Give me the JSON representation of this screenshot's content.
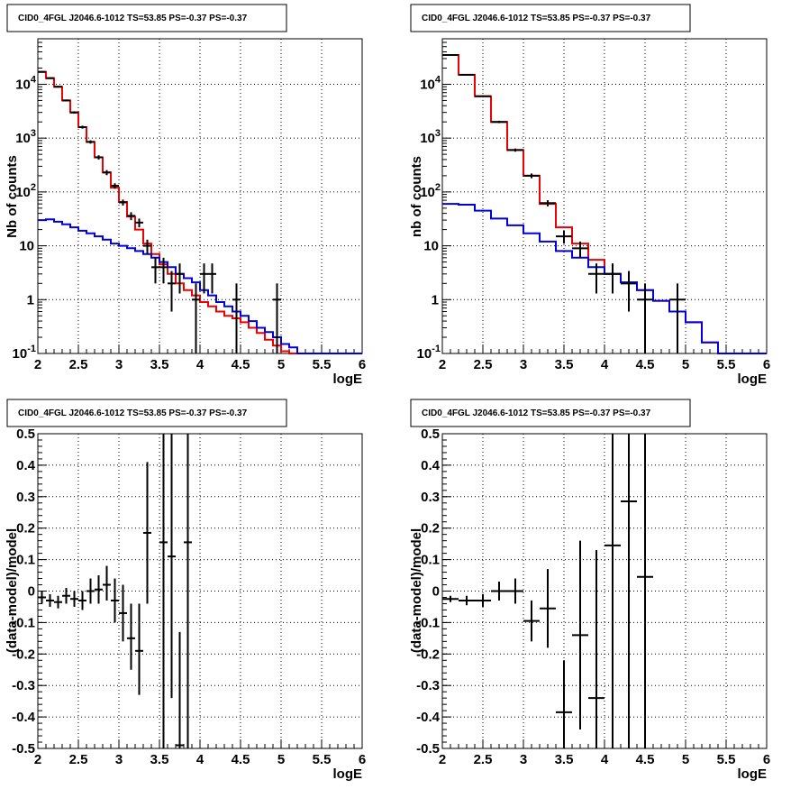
{
  "colors": {
    "data": "#000000",
    "total_model": "#ee0000",
    "component_model": "#0000dd"
  },
  "chart_data": [
    {
      "type": "line",
      "title": "CID0_4FGL J2046.6-1012 TS=53.85 PS=-0.37 PS=-0.37",
      "xlabel": "logE",
      "ylabel": "Nb of counts",
      "xlim": [
        2,
        6
      ],
      "ylim": [
        0.1,
        70000
      ],
      "yscale": "log",
      "grid": true,
      "xticks": [
        "2",
        "2.5",
        "3",
        "3.5",
        "4",
        "4.5",
        "5",
        "5.5",
        "6"
      ],
      "yticks": [
        {
          "v": 0.1,
          "label": "10",
          "exp": "-1"
        },
        {
          "v": 1,
          "label": "1",
          "exp": ""
        },
        {
          "v": 10,
          "label": "10",
          "exp": ""
        },
        {
          "v": 100,
          "label": "10",
          "exp": "2"
        },
        {
          "v": 1000,
          "label": "10",
          "exp": "3"
        },
        {
          "v": 10000,
          "label": "10",
          "exp": "4"
        }
      ],
      "bin_edges": [
        2,
        2.1,
        2.2,
        2.3,
        2.4,
        2.5,
        2.6,
        2.7,
        2.8,
        2.9,
        3,
        3.1,
        3.2,
        3.3,
        3.4,
        3.5,
        3.6,
        3.7,
        3.8,
        3.9,
        4,
        4.1,
        4.2,
        4.3,
        4.4,
        4.5,
        4.6,
        4.7,
        4.8,
        4.9,
        5,
        5.1,
        5.2,
        5.3,
        5.4,
        5.5,
        5.6,
        5.7,
        5.8,
        5.9,
        6
      ],
      "series": [
        {
          "role": "total_model",
          "step": true,
          "values": [
            17000,
            13000,
            9000,
            5000,
            3000,
            1600,
            850,
            440,
            230,
            120,
            65,
            35,
            20,
            11,
            7,
            4.5,
            3,
            2,
            1.5,
            1.2,
            0.9,
            0.75,
            0.6,
            0.5,
            0.45,
            0.38,
            0.3,
            0.24,
            0.18,
            0.14,
            0.11,
            0.1,
            0.1,
            0.1,
            0.1,
            0.1,
            0.1,
            0.1,
            0.1,
            0.1
          ]
        },
        {
          "role": "component_model",
          "step": true,
          "values": [
            30,
            31,
            28,
            25,
            22,
            19,
            17,
            15,
            13,
            11,
            10,
            9,
            8,
            7,
            6,
            5,
            4,
            3,
            2.5,
            2.1,
            1.5,
            1.2,
            0.9,
            0.75,
            0.6,
            0.5,
            0.4,
            0.3,
            0.25,
            0.2,
            0.15,
            0.13,
            0.1,
            0.1,
            0.1,
            0.1,
            0.1,
            0.1,
            0.1,
            0.1
          ]
        }
      ],
      "points": [
        {
          "x": 2.05,
          "y": 17000,
          "lo": 16500,
          "hi": 17500
        },
        {
          "x": 2.15,
          "y": 13000,
          "lo": 12600,
          "hi": 13400
        },
        {
          "x": 2.25,
          "y": 9000,
          "lo": 8700,
          "hi": 9300
        },
        {
          "x": 2.35,
          "y": 5000,
          "lo": 4800,
          "hi": 5200
        },
        {
          "x": 2.45,
          "y": 3000,
          "lo": 2850,
          "hi": 3150
        },
        {
          "x": 2.55,
          "y": 1600,
          "lo": 1500,
          "hi": 1700
        },
        {
          "x": 2.65,
          "y": 850,
          "lo": 790,
          "hi": 910
        },
        {
          "x": 2.75,
          "y": 440,
          "lo": 400,
          "hi": 480
        },
        {
          "x": 2.85,
          "y": 230,
          "lo": 205,
          "hi": 255
        },
        {
          "x": 2.95,
          "y": 130,
          "lo": 115,
          "hi": 145
        },
        {
          "x": 3.05,
          "y": 64,
          "lo": 56,
          "hi": 72
        },
        {
          "x": 3.15,
          "y": 36,
          "lo": 30,
          "hi": 42
        },
        {
          "x": 3.25,
          "y": 27,
          "lo": 22,
          "hi": 32
        },
        {
          "x": 3.35,
          "y": 10,
          "lo": 7,
          "hi": 13
        },
        {
          "x": 3.45,
          "y": 4,
          "lo": 2,
          "hi": 6
        },
        {
          "x": 3.55,
          "y": 4,
          "lo": 2,
          "hi": 6
        },
        {
          "x": 3.65,
          "y": 2,
          "lo": 0.6,
          "hi": 3.4
        },
        {
          "x": 3.75,
          "y": 3,
          "lo": 1.3,
          "hi": 4.7
        },
        {
          "x": 3.95,
          "y": 1,
          "lo": 0.1,
          "hi": 2
        },
        {
          "x": 4.05,
          "y": 3,
          "lo": 1.3,
          "hi": 4.7
        },
        {
          "x": 4.15,
          "y": 3,
          "lo": 1.3,
          "hi": 4.7
        },
        {
          "x": 4.45,
          "y": 1,
          "lo": 0.1,
          "hi": 2
        },
        {
          "x": 4.95,
          "y": 1,
          "lo": 0.1,
          "hi": 2
        }
      ]
    },
    {
      "type": "line",
      "title": "CID0_4FGL J2046.6-1012 TS=53.85 PS=-0.37 PS=-0.37",
      "xlabel": "logE",
      "ylabel": "nb of counts",
      "xlim": [
        2,
        6
      ],
      "ylim": [
        0.1,
        70000
      ],
      "yscale": "log",
      "grid": true,
      "xticks": [
        "2",
        "2.5",
        "3",
        "3.5",
        "4",
        "4.5",
        "5",
        "5.5",
        "6"
      ],
      "yticks": [
        {
          "v": 0.1,
          "label": "10",
          "exp": "-1"
        },
        {
          "v": 1,
          "label": "1",
          "exp": ""
        },
        {
          "v": 10,
          "label": "10",
          "exp": ""
        },
        {
          "v": 100,
          "label": "10",
          "exp": "2"
        },
        {
          "v": 1000,
          "label": "10",
          "exp": "3"
        },
        {
          "v": 10000,
          "label": "10",
          "exp": "4"
        }
      ],
      "bin_edges": [
        2,
        2.2,
        2.4,
        2.6,
        2.8,
        3,
        3.2,
        3.4,
        3.6,
        3.8,
        4,
        4.2,
        4.4,
        4.6,
        4.8,
        5,
        5.2,
        5.4,
        5.6,
        5.8,
        6
      ],
      "series": [
        {
          "role": "total_model",
          "step": true,
          "values": [
            35000,
            15000,
            6000,
            2000,
            600,
            200,
            60,
            22,
            11,
            5.5,
            3,
            2.1,
            1.5,
            0.95,
            0.6,
            0.38,
            0.16,
            0.1,
            0.1,
            0.1
          ]
        },
        {
          "role": "component_model",
          "step": true,
          "values": [
            60,
            58,
            45,
            32,
            24,
            17,
            12,
            8,
            6,
            4,
            3,
            2.1,
            1.5,
            0.95,
            0.6,
            0.38,
            0.16,
            0.1,
            0.1,
            0.1
          ]
        }
      ],
      "points": [
        {
          "x": 2.1,
          "y": 35000,
          "lo": 34000,
          "hi": 36000
        },
        {
          "x": 2.3,
          "y": 15000,
          "lo": 14500,
          "hi": 15500
        },
        {
          "x": 2.5,
          "y": 6000,
          "lo": 5800,
          "hi": 6200
        },
        {
          "x": 2.7,
          "y": 2000,
          "lo": 1900,
          "hi": 2100
        },
        {
          "x": 2.9,
          "y": 600,
          "lo": 560,
          "hi": 640
        },
        {
          "x": 3.1,
          "y": 200,
          "lo": 180,
          "hi": 220
        },
        {
          "x": 3.3,
          "y": 62,
          "lo": 54,
          "hi": 70
        },
        {
          "x": 3.5,
          "y": 15,
          "lo": 11,
          "hi": 19
        },
        {
          "x": 3.7,
          "y": 9,
          "lo": 6,
          "hi": 12
        },
        {
          "x": 3.9,
          "y": 3,
          "lo": 1.3,
          "hi": 4.7
        },
        {
          "x": 4.1,
          "y": 3,
          "lo": 1.3,
          "hi": 4.7
        },
        {
          "x": 4.3,
          "y": 2,
          "lo": 0.6,
          "hi": 3.4
        },
        {
          "x": 4.5,
          "y": 1,
          "lo": 0.1,
          "hi": 2
        },
        {
          "x": 4.9,
          "y": 1,
          "lo": 0.1,
          "hi": 2
        }
      ]
    },
    {
      "type": "scatter",
      "title": "CID0_4FGL J2046.6-1012 TS=53.85 PS=-0.37 PS=-0.37",
      "xlabel": "logE",
      "ylabel": "(data-model)/model",
      "xlim": [
        2,
        6
      ],
      "ylim": [
        -0.5,
        0.5
      ],
      "yscale": "linear",
      "grid": true,
      "xticks": [
        "2",
        "2.5",
        "3",
        "3.5",
        "4",
        "4.5",
        "5",
        "5.5",
        "6"
      ],
      "yticks": [
        "-0.5",
        "-0.4",
        "-0.3",
        "-0.2",
        "-0.1",
        "0",
        "0.1",
        "0.2",
        "0.3",
        "0.4",
        "0.5"
      ],
      "points": [
        {
          "x": 2.05,
          "y": -0.02,
          "lo": -0.04,
          "hi": 0.0
        },
        {
          "x": 2.15,
          "y": -0.03,
          "lo": -0.05,
          "hi": -0.01
        },
        {
          "x": 2.25,
          "y": -0.035,
          "lo": -0.055,
          "hi": -0.015
        },
        {
          "x": 2.35,
          "y": -0.015,
          "lo": -0.04,
          "hi": 0.01
        },
        {
          "x": 2.45,
          "y": -0.025,
          "lo": -0.05,
          "hi": 0.0
        },
        {
          "x": 2.55,
          "y": -0.03,
          "lo": -0.06,
          "hi": 0.0
        },
        {
          "x": 2.65,
          "y": 0.0,
          "lo": -0.04,
          "hi": 0.04
        },
        {
          "x": 2.75,
          "y": 0.005,
          "lo": -0.04,
          "hi": 0.05
        },
        {
          "x": 2.85,
          "y": 0.02,
          "lo": -0.03,
          "hi": 0.08
        },
        {
          "x": 2.95,
          "y": -0.03,
          "lo": -0.1,
          "hi": 0.04
        },
        {
          "x": 3.05,
          "y": -0.07,
          "lo": -0.16,
          "hi": 0.02
        },
        {
          "x": 3.15,
          "y": -0.15,
          "lo": -0.25,
          "hi": -0.04
        },
        {
          "x": 3.25,
          "y": -0.19,
          "lo": -0.33,
          "hi": -0.04
        },
        {
          "x": 3.35,
          "y": 0.185,
          "lo": -0.04,
          "hi": 0.41
        },
        {
          "x": 3.55,
          "y": 0.155,
          "lo": -0.5,
          "hi": 0.5
        },
        {
          "x": 3.65,
          "y": 0.11,
          "lo": -0.34,
          "hi": 0.5
        },
        {
          "x": 3.75,
          "y": -0.49,
          "lo": -0.5,
          "hi": -0.13
        },
        {
          "x": 3.85,
          "y": 0.155,
          "lo": -0.5,
          "hi": 0.5
        }
      ]
    },
    {
      "type": "scatter",
      "title": "CID0_4FGL J2046.6-1012 TS=53.85 PS=-0.37 PS=-0.37",
      "xlabel": "logE",
      "ylabel": "(data-model)/model",
      "xlim": [
        2,
        6
      ],
      "ylim": [
        -0.5,
        0.5
      ],
      "yscale": "linear",
      "grid": true,
      "xticks": [
        "2",
        "2.5",
        "3",
        "3.5",
        "4",
        "4.5",
        "5",
        "5.5",
        "6"
      ],
      "yticks": [
        "-0.5",
        "-0.4",
        "-0.3",
        "-0.2",
        "-0.1",
        "0",
        "0.1",
        "0.2",
        "0.3",
        "0.4",
        "0.5"
      ],
      "points": [
        {
          "x": 2.1,
          "y": -0.025,
          "lo": -0.035,
          "hi": -0.015
        },
        {
          "x": 2.3,
          "y": -0.03,
          "lo": -0.045,
          "hi": -0.015
        },
        {
          "x": 2.5,
          "y": -0.03,
          "lo": -0.05,
          "hi": -0.01
        },
        {
          "x": 2.7,
          "y": 0.0,
          "lo": -0.03,
          "hi": 0.03
        },
        {
          "x": 2.9,
          "y": 0.0,
          "lo": -0.04,
          "hi": 0.04
        },
        {
          "x": 3.1,
          "y": -0.095,
          "lo": -0.16,
          "hi": -0.03
        },
        {
          "x": 3.3,
          "y": -0.055,
          "lo": -0.18,
          "hi": 0.07
        },
        {
          "x": 3.5,
          "y": -0.385,
          "lo": -0.5,
          "hi": -0.22
        },
        {
          "x": 3.7,
          "y": -0.14,
          "lo": -0.44,
          "hi": 0.16
        },
        {
          "x": 3.9,
          "y": -0.34,
          "lo": -0.5,
          "hi": 0.13
        },
        {
          "x": 4.1,
          "y": 0.145,
          "lo": -0.5,
          "hi": 0.5
        },
        {
          "x": 4.3,
          "y": 0.285,
          "lo": -0.5,
          "hi": 0.5
        },
        {
          "x": 4.5,
          "y": 0.045,
          "lo": -0.5,
          "hi": 0.5
        }
      ]
    }
  ]
}
